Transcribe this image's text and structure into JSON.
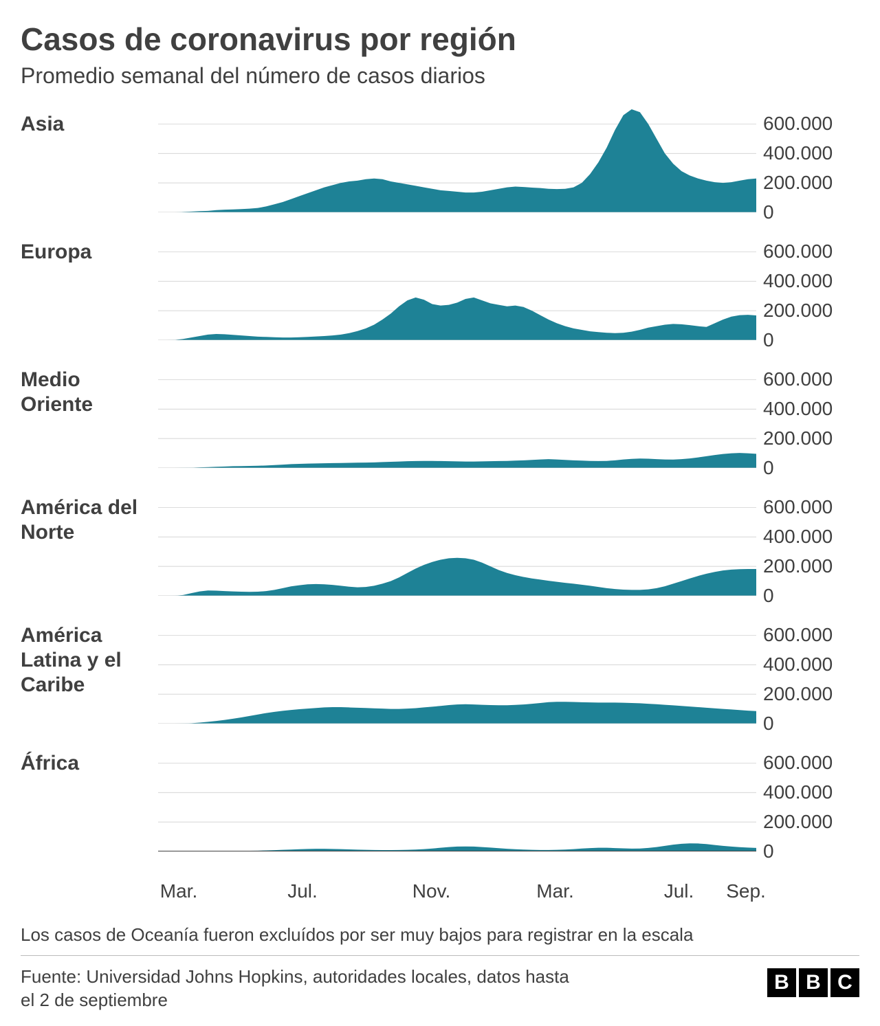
{
  "title": "Casos de coronavirus por región",
  "subtitle": "Promedio semanal del número de casos diarios",
  "note": "Los casos de Oceanía fueron excluídos por ser muy bajos para registrar en la escala",
  "source": "Fuente: Universidad Johns Hopkins, autoridades locales, datos hasta el 2 de septiembre",
  "logo_letters": [
    "B",
    "B",
    "C"
  ],
  "chart": {
    "type": "area-small-multiples",
    "area_color": "#1e8296",
    "grid_color": "#c7c7c7",
    "baseline_color": "#404040",
    "background_color": "#ffffff",
    "ymax": 700000,
    "ytick_values": [
      600000,
      400000,
      200000,
      0
    ],
    "ytick_labels": [
      "600.000",
      "400.000",
      "200.000",
      "0"
    ],
    "x_domain": [
      0,
      580
    ],
    "x_ticks": [
      {
        "pos": 20,
        "label": "Mar."
      },
      {
        "pos": 140,
        "label": "Jul."
      },
      {
        "pos": 265,
        "label": "Nov."
      },
      {
        "pos": 385,
        "label": "Mar."
      },
      {
        "pos": 505,
        "label": "Jul."
      },
      {
        "pos": 570,
        "label": "Sep."
      }
    ],
    "regions": [
      {
        "name": "Asia",
        "values": [
          0,
          0,
          0,
          3000,
          5000,
          8000,
          10000,
          15000,
          18000,
          20000,
          22000,
          25000,
          30000,
          40000,
          55000,
          70000,
          90000,
          110000,
          130000,
          150000,
          170000,
          185000,
          200000,
          210000,
          215000,
          225000,
          230000,
          225000,
          210000,
          200000,
          190000,
          180000,
          170000,
          160000,
          150000,
          145000,
          140000,
          135000,
          135000,
          140000,
          150000,
          160000,
          170000,
          175000,
          172000,
          168000,
          165000,
          160000,
          158000,
          160000,
          170000,
          200000,
          260000,
          340000,
          440000,
          560000,
          660000,
          700000,
          680000,
          600000,
          500000,
          400000,
          330000,
          280000,
          250000,
          230000,
          215000,
          205000,
          200000,
          205000,
          215000,
          225000,
          230000
        ]
      },
      {
        "name": "Europa",
        "values": [
          0,
          0,
          2000,
          8000,
          18000,
          28000,
          38000,
          42000,
          40000,
          36000,
          32000,
          28000,
          24000,
          22000,
          20000,
          18000,
          18000,
          20000,
          22000,
          25000,
          28000,
          32000,
          38000,
          48000,
          62000,
          80000,
          105000,
          140000,
          180000,
          230000,
          270000,
          290000,
          275000,
          245000,
          235000,
          240000,
          255000,
          280000,
          290000,
          270000,
          250000,
          240000,
          230000,
          235000,
          225000,
          200000,
          170000,
          140000,
          115000,
          95000,
          80000,
          70000,
          60000,
          55000,
          50000,
          48000,
          50000,
          58000,
          70000,
          85000,
          95000,
          105000,
          110000,
          108000,
          102000,
          95000,
          90000,
          115000,
          140000,
          160000,
          170000,
          172000,
          168000
        ]
      },
      {
        "name": "Medio Oriente",
        "values": [
          0,
          0,
          0,
          1000,
          2000,
          4000,
          6000,
          8000,
          10000,
          12000,
          13000,
          14000,
          15000,
          17000,
          20000,
          23000,
          26000,
          28000,
          30000,
          31000,
          32000,
          33000,
          34000,
          35000,
          36000,
          37000,
          38000,
          40000,
          42000,
          44000,
          46000,
          47000,
          48000,
          48000,
          47000,
          46000,
          45000,
          44000,
          44000,
          45000,
          46000,
          47000,
          48000,
          50000,
          52000,
          55000,
          58000,
          60000,
          58000,
          55000,
          52000,
          50000,
          48000,
          47000,
          48000,
          52000,
          58000,
          62000,
          64000,
          63000,
          60000,
          58000,
          57000,
          60000,
          65000,
          72000,
          80000,
          88000,
          95000,
          100000,
          102000,
          100000,
          96000
        ]
      },
      {
        "name": "América del Norte",
        "values": [
          0,
          0,
          500,
          5000,
          18000,
          30000,
          36000,
          35000,
          32000,
          30000,
          28000,
          27000,
          28000,
          32000,
          40000,
          52000,
          64000,
          72000,
          78000,
          80000,
          78000,
          74000,
          68000,
          62000,
          58000,
          60000,
          68000,
          82000,
          100000,
          125000,
          155000,
          185000,
          210000,
          230000,
          245000,
          255000,
          258000,
          255000,
          245000,
          225000,
          200000,
          175000,
          155000,
          140000,
          128000,
          118000,
          110000,
          102000,
          95000,
          88000,
          82000,
          75000,
          68000,
          60000,
          52000,
          46000,
          42000,
          40000,
          40000,
          44000,
          52000,
          65000,
          82000,
          100000,
          118000,
          135000,
          150000,
          162000,
          172000,
          178000,
          181000,
          182000,
          182000
        ]
      },
      {
        "name": "América Latina y el Caribe",
        "values": [
          0,
          0,
          0,
          1000,
          3000,
          7000,
          12000,
          18000,
          25000,
          33000,
          42000,
          52000,
          62000,
          72000,
          80000,
          87000,
          93000,
          98000,
          102000,
          106000,
          110000,
          112000,
          112000,
          110000,
          108000,
          106000,
          104000,
          102000,
          100000,
          100000,
          102000,
          105000,
          110000,
          115000,
          120000,
          126000,
          130000,
          132000,
          130000,
          128000,
          126000,
          125000,
          125000,
          127000,
          130000,
          135000,
          140000,
          146000,
          148000,
          148000,
          147000,
          145000,
          144000,
          143000,
          143000,
          143000,
          142000,
          140000,
          138000,
          135000,
          132000,
          128000,
          124000,
          120000,
          116000,
          112000,
          108000,
          104000,
          100000,
          96000,
          92000,
          88000,
          85000
        ]
      },
      {
        "name": "África",
        "values": [
          0,
          0,
          0,
          200,
          500,
          1000,
          1500,
          2000,
          2500,
          3000,
          3500,
          4500,
          5500,
          7000,
          9000,
          11000,
          13000,
          15000,
          17000,
          18000,
          18000,
          17000,
          16000,
          14000,
          12000,
          11000,
          10000,
          9500,
          9500,
          10000,
          11000,
          13000,
          16000,
          20000,
          25000,
          30000,
          33000,
          34000,
          33000,
          30000,
          26000,
          22000,
          18000,
          15000,
          13000,
          11000,
          10000,
          10000,
          11000,
          13000,
          16000,
          20000,
          23000,
          25000,
          25000,
          23000,
          21000,
          19000,
          20000,
          24000,
          30000,
          38000,
          46000,
          52000,
          55000,
          54000,
          50000,
          44000,
          38000,
          33000,
          29000,
          26000,
          24000
        ]
      }
    ]
  }
}
